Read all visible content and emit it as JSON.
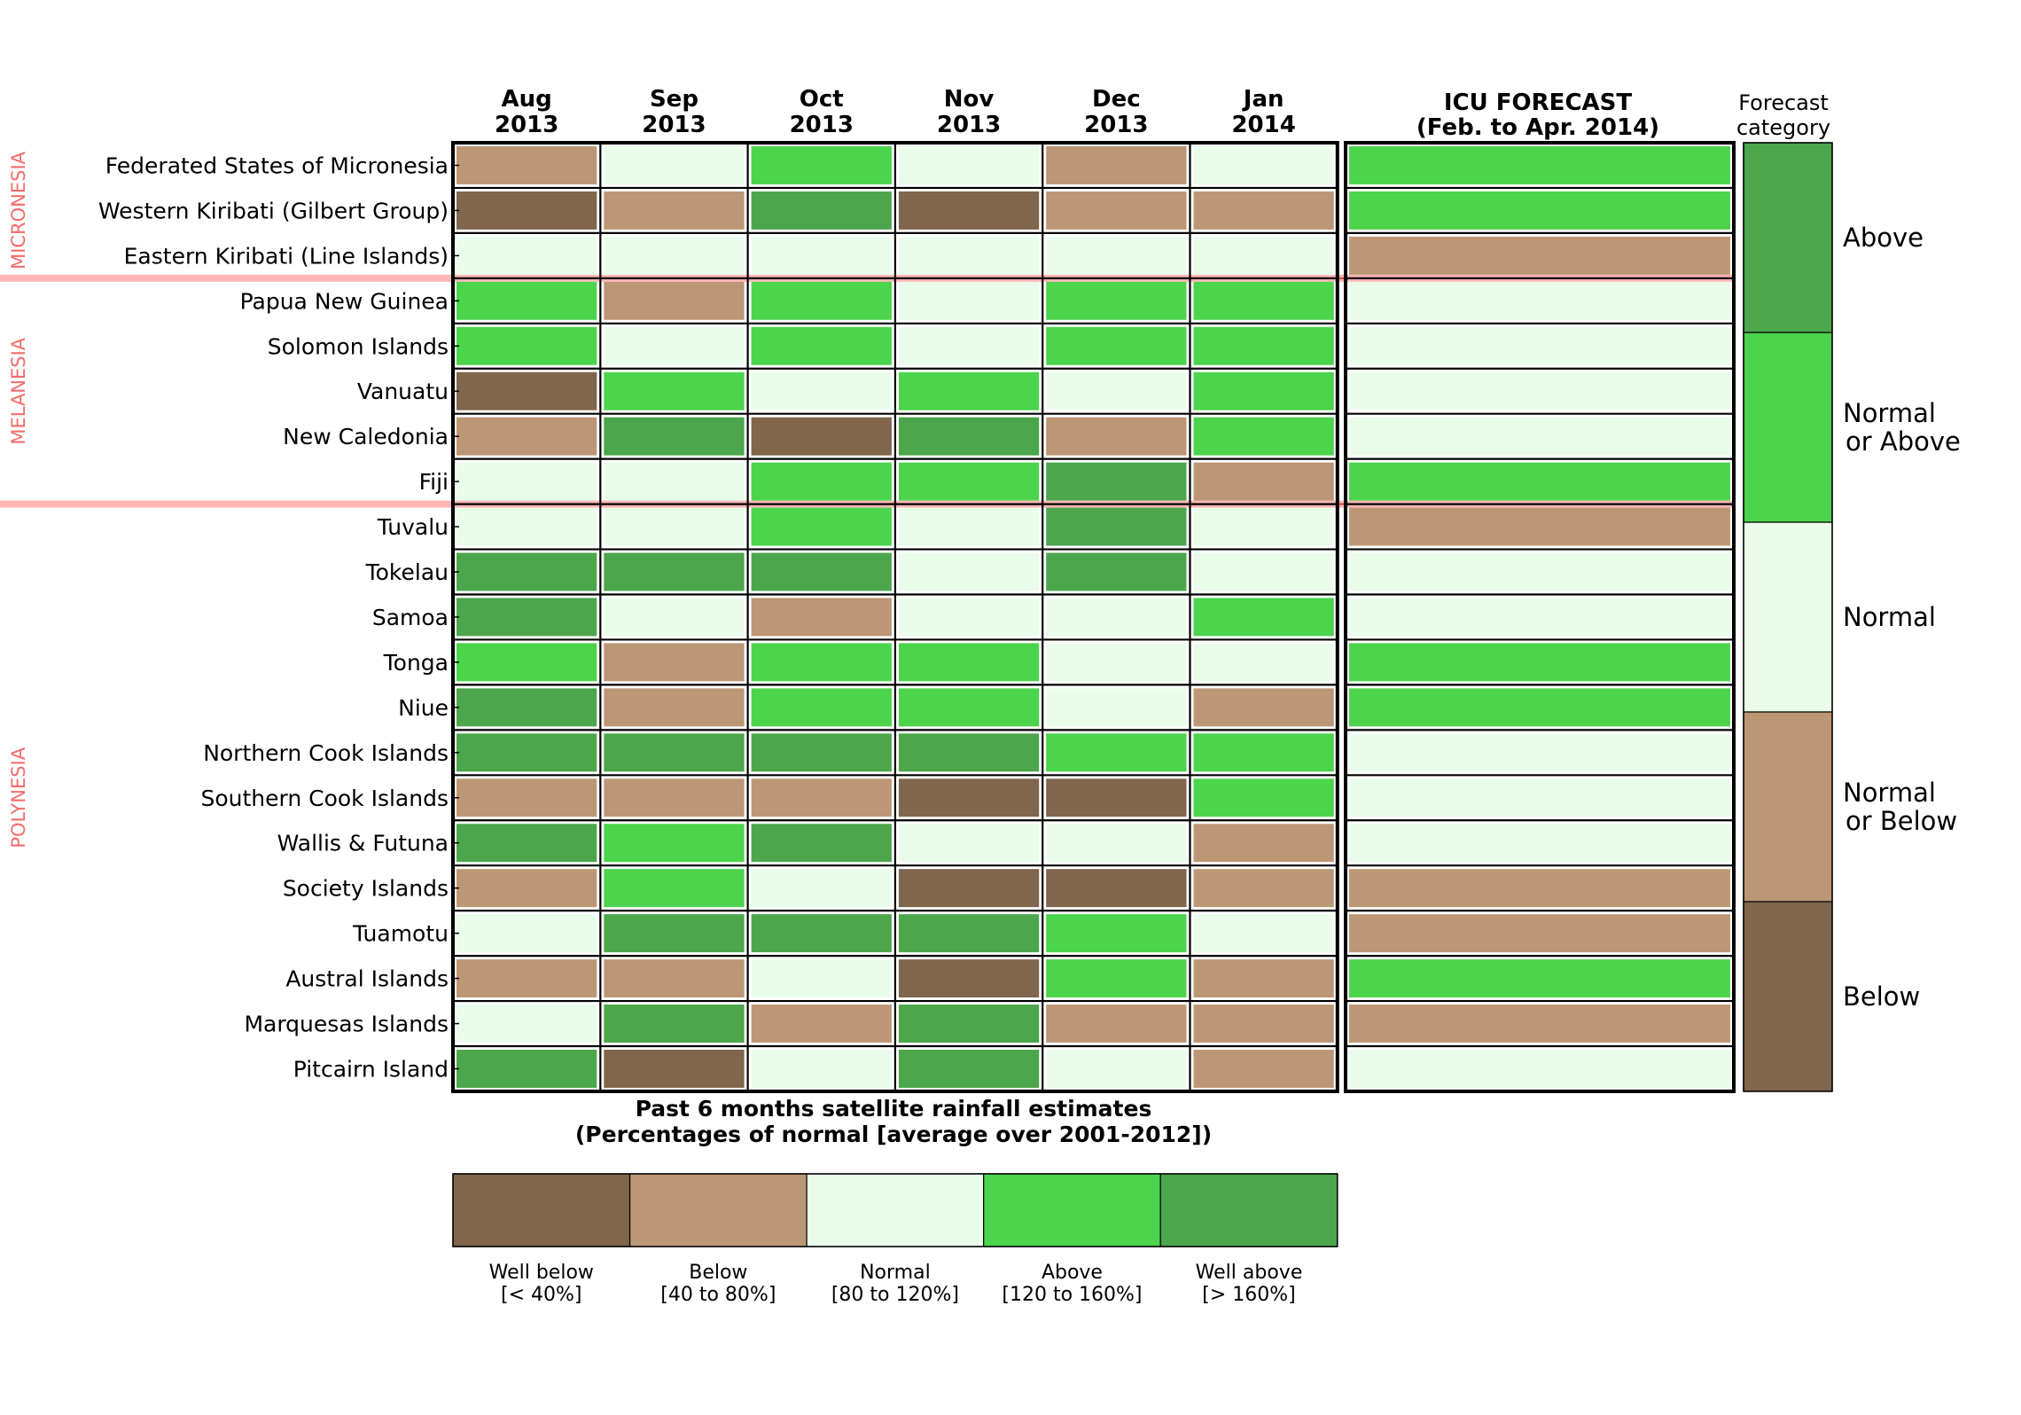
{
  "chart_data": {
    "type": "heatmap",
    "title": "Past 6 months satellite rainfall estimates",
    "subtitle": "(Percentages of normal [average over 2001-2012])",
    "months": [
      {
        "month": "Aug",
        "year": "2013"
      },
      {
        "month": "Sep",
        "year": "2013"
      },
      {
        "month": "Oct",
        "year": "2013"
      },
      {
        "month": "Nov",
        "year": "2013"
      },
      {
        "month": "Dec",
        "year": "2013"
      },
      {
        "month": "Jan",
        "year": "2014"
      }
    ],
    "forecast_header": {
      "title": "ICU FORECAST",
      "period": "(Feb. to Apr. 2014)"
    },
    "forecast_category_title": [
      "Forecast",
      "category"
    ],
    "regions": [
      {
        "name": "MICRONESIA",
        "first_row": 0,
        "last_row": 2
      },
      {
        "name": "MELANESIA",
        "first_row": 3,
        "last_row": 7
      },
      {
        "name": "POLYNESIA",
        "first_row": 8,
        "last_row": 20
      }
    ],
    "rows": [
      {
        "name": "Federated States of Micronesia",
        "values": [
          1,
          2,
          3,
          2,
          1,
          2
        ],
        "forecast": 3
      },
      {
        "name": "Western Kiribati (Gilbert Group)",
        "values": [
          0,
          1,
          4,
          0,
          1,
          1
        ],
        "forecast": 3
      },
      {
        "name": "Eastern Kiribati (Line Islands)",
        "values": [
          2,
          2,
          2,
          2,
          2,
          2
        ],
        "forecast": 1
      },
      {
        "name": "Papua New Guinea",
        "values": [
          3,
          1,
          3,
          2,
          3,
          3
        ],
        "forecast": 2
      },
      {
        "name": "Solomon Islands",
        "values": [
          3,
          2,
          3,
          2,
          3,
          3
        ],
        "forecast": 2
      },
      {
        "name": "Vanuatu",
        "values": [
          0,
          3,
          2,
          3,
          2,
          3
        ],
        "forecast": 2
      },
      {
        "name": "New Caledonia",
        "values": [
          1,
          4,
          0,
          4,
          1,
          3
        ],
        "forecast": 2
      },
      {
        "name": "Fiji",
        "values": [
          2,
          2,
          3,
          3,
          4,
          1
        ],
        "forecast": 3
      },
      {
        "name": "Tuvalu",
        "values": [
          2,
          2,
          3,
          2,
          4,
          2
        ],
        "forecast": 1
      },
      {
        "name": "Tokelau",
        "values": [
          4,
          4,
          4,
          2,
          4,
          2
        ],
        "forecast": 2
      },
      {
        "name": "Samoa",
        "values": [
          4,
          2,
          1,
          2,
          2,
          3
        ],
        "forecast": 2
      },
      {
        "name": "Tonga",
        "values": [
          3,
          1,
          3,
          3,
          2,
          2
        ],
        "forecast": 3
      },
      {
        "name": "Niue",
        "values": [
          4,
          1,
          3,
          3,
          2,
          1
        ],
        "forecast": 3
      },
      {
        "name": "Northern Cook Islands",
        "values": [
          4,
          4,
          4,
          4,
          3,
          3
        ],
        "forecast": 2
      },
      {
        "name": "Southern Cook Islands",
        "values": [
          1,
          1,
          1,
          0,
          0,
          3
        ],
        "forecast": 2
      },
      {
        "name": "Wallis & Futuna",
        "values": [
          4,
          3,
          4,
          2,
          2,
          1
        ],
        "forecast": 2
      },
      {
        "name": "Society Islands",
        "values": [
          1,
          3,
          2,
          0,
          0,
          1
        ],
        "forecast": 1
      },
      {
        "name": "Tuamotu",
        "values": [
          2,
          4,
          4,
          4,
          3,
          2
        ],
        "forecast": 1
      },
      {
        "name": "Austral Islands",
        "values": [
          1,
          1,
          2,
          0,
          3,
          1
        ],
        "forecast": 3
      },
      {
        "name": "Marquesas Islands",
        "values": [
          2,
          4,
          1,
          4,
          1,
          1
        ],
        "forecast": 1
      },
      {
        "name": "Pitcairn Island",
        "values": [
          4,
          0,
          2,
          4,
          2,
          1
        ],
        "forecast": 2
      }
    ],
    "rainfall_legend": [
      {
        "label": "Well below",
        "range": "[< 40%]",
        "color": "#7f664c"
      },
      {
        "label": "Below",
        "range": "[40 to 80%]",
        "color": "#bc9775"
      },
      {
        "label": "Normal",
        "range": "[80 to 120%]",
        "color": "#eafcea"
      },
      {
        "label": "Above",
        "range": "[120 to 160%]",
        "color": "#4cd44c"
      },
      {
        "label": "Well above",
        "range": "[> 160%]",
        "color": "#4ca64c"
      }
    ],
    "forecast_legend": [
      {
        "lines": [
          "Below"
        ],
        "color": "#7f664c"
      },
      {
        "lines": [
          "Normal",
          "or Below"
        ],
        "color": "#bc9775"
      },
      {
        "lines": [
          "Normal"
        ],
        "color": "#eafcea"
      },
      {
        "lines": [
          "Normal",
          "or Above"
        ],
        "color": "#4cd44c"
      },
      {
        "lines": [
          "Above"
        ],
        "color": "#4ca64c"
      }
    ],
    "region_color": "#f26b6b",
    "divider_color": "#ffb6b6"
  }
}
